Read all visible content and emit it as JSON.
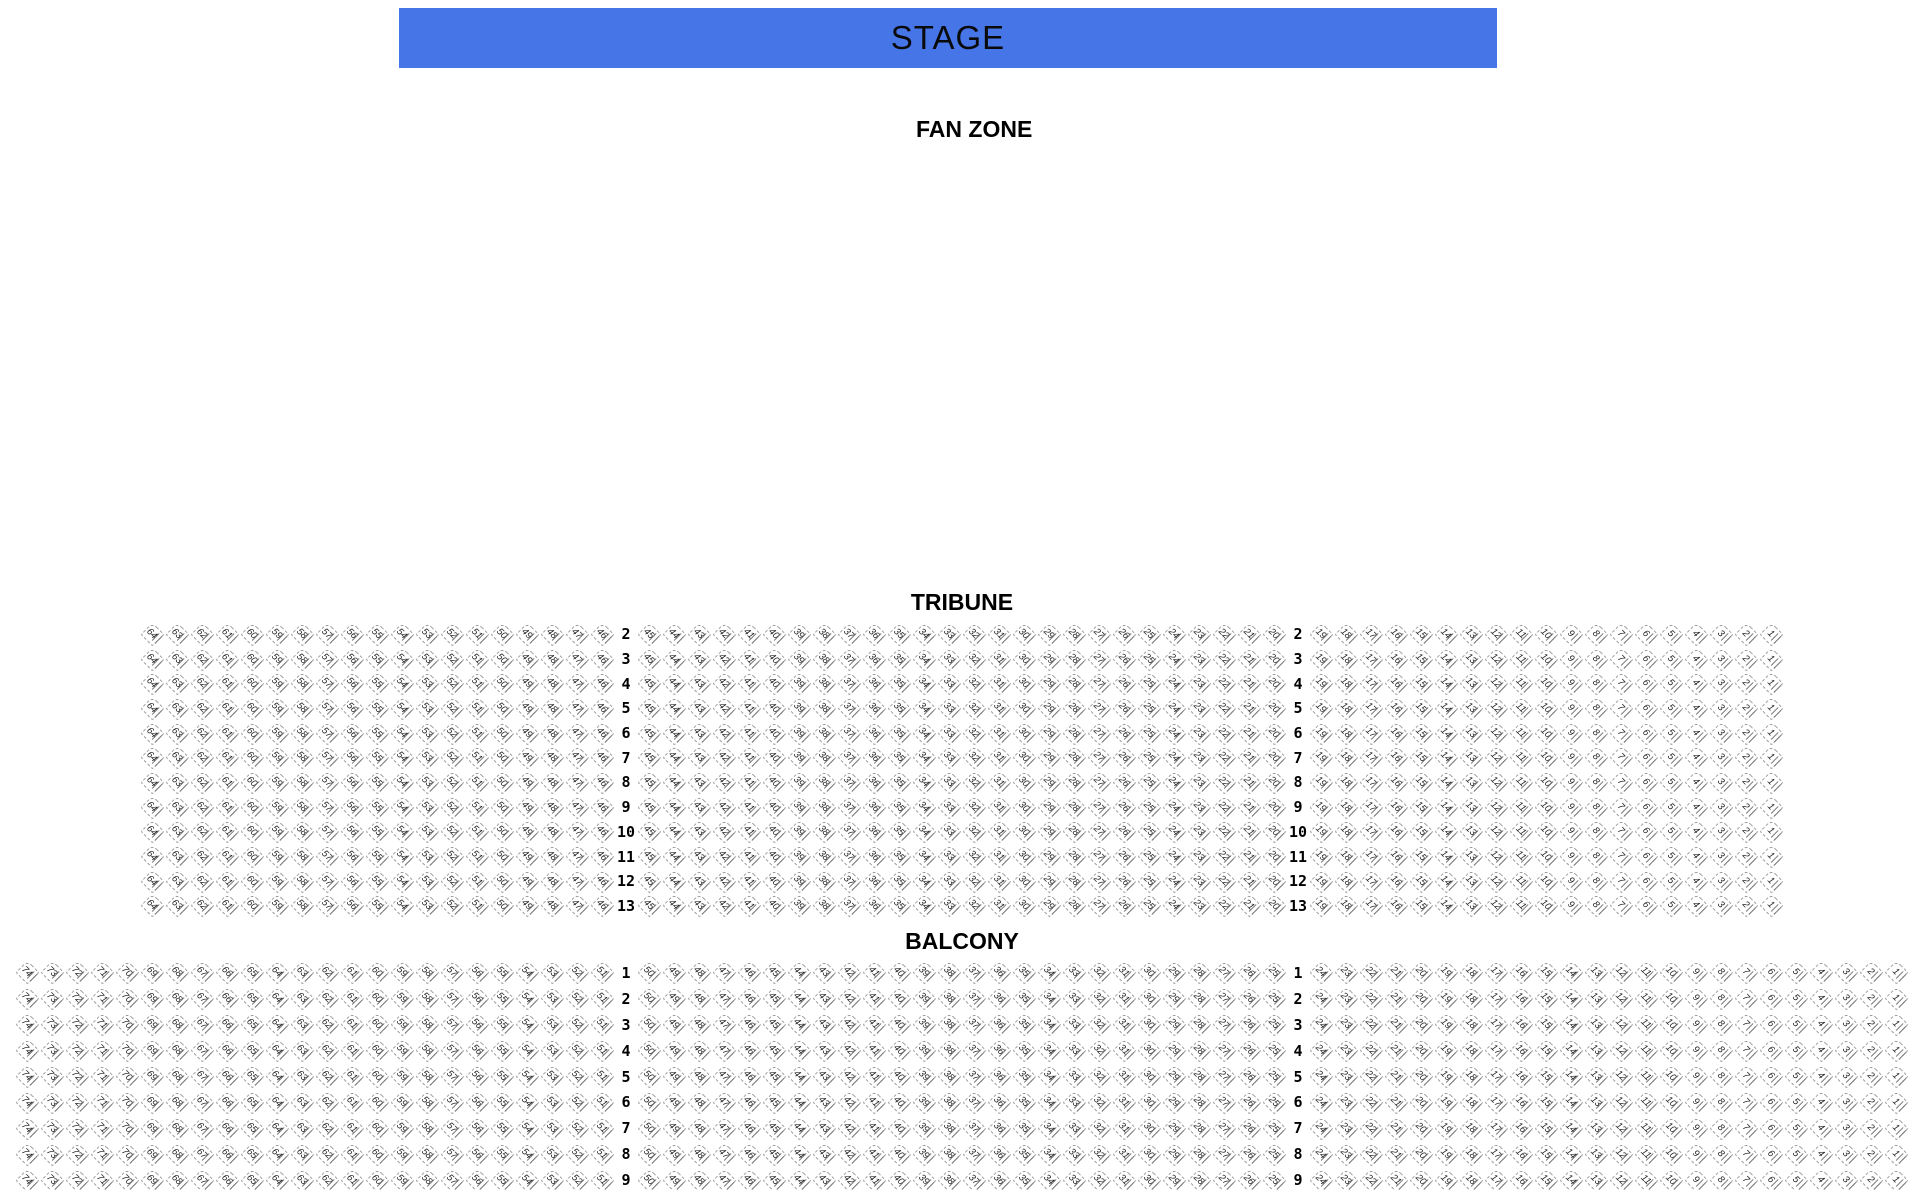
{
  "stage": {
    "label": "STAGE",
    "background": "#4575e7"
  },
  "fan_zone": {
    "label": "FAN ZONE"
  },
  "sections": [
    {
      "id": "tribune",
      "label": "TRIBUNE",
      "rows": [
        2,
        3,
        4,
        5,
        6,
        7,
        8,
        9,
        10,
        11,
        12,
        13
      ],
      "blocks": [
        {
          "seat_from": 64,
          "seat_to": 46
        },
        {
          "seat_from": 45,
          "seat_to": 20
        },
        {
          "seat_from": 19,
          "seat_to": 1
        }
      ]
    },
    {
      "id": "balcony",
      "label": "BALCONY",
      "rows": [
        1,
        2,
        3,
        4,
        5,
        6,
        7,
        8,
        9
      ],
      "blocks": [
        {
          "seat_from": 74,
          "seat_to": 51
        },
        {
          "seat_from": 50,
          "seat_to": 25
        },
        {
          "seat_from": 24,
          "seat_to": 1
        }
      ]
    }
  ],
  "seat_style": {
    "border_color": "#999999",
    "number_color": "#222222",
    "accent_line_color": "#777777"
  }
}
